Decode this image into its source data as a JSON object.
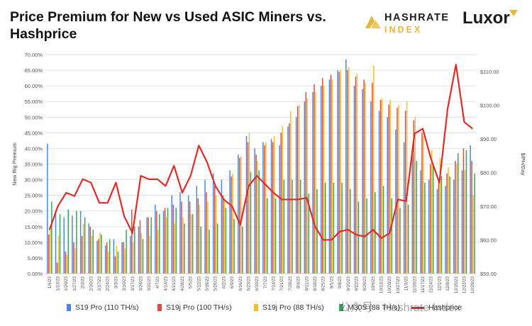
{
  "title": "Price Premium for New vs Used ASIC Miners vs. Hashprice",
  "logos": {
    "hashrate_line1": "HASHRATE",
    "hashrate_line2": "INDEX",
    "luxor": "Luxor"
  },
  "watermark": "公众号 · Hashrate Index",
  "colors": {
    "s19pro": "#4a86e8",
    "s19jpro": "#e24b3c",
    "s19jpro88": "#f4be2a",
    "m30s": "#3aa55a",
    "hashprice": "#e02c28"
  },
  "chart_data": {
    "type": "bar",
    "title": "Price Premium for New vs Used ASIC Miners vs. Hashprice",
    "ylabel": "New Rig Premium",
    "y2label": "$/PH/Day",
    "ylim": [
      0,
      70
    ],
    "y2lim": [
      50,
      115
    ],
    "yticks": [
      "0.00%",
      "5.00%",
      "10.00%",
      "15.00%",
      "20.00%",
      "25.00%",
      "30.00%",
      "35.00%",
      "40.00%",
      "45.00%",
      "50.00%",
      "55.00%",
      "60.00%",
      "65.00%",
      "70.00%"
    ],
    "y2ticks": [
      "$50.00",
      "$60.00",
      "$70.00",
      "$80.00",
      "$90.00",
      "$100.00",
      "$110.00"
    ],
    "grid": true,
    "legend": "bottom",
    "x_labels": [
      "1/6/23",
      "1/13/23",
      "1/20/23",
      "1/27/23",
      "2/3/23",
      "2/10/23",
      "2/17/23",
      "2/24/23",
      "3/3/23",
      "3/10/23",
      "3/17/23",
      "3/24/23",
      "3/31/23",
      "4/7/23",
      "4/14/23",
      "4/21/23",
      "4/28/23",
      "5/5/23",
      "5/12/23",
      "5/19/23",
      "5/26/23",
      "6/2/23",
      "6/9/23",
      "6/16/23",
      "6/23/23",
      "6/30/23",
      "7/7/23",
      "7/14/23",
      "7/21/23",
      "7/28/23",
      "8/4/23",
      "8/11/23",
      "8/18/23",
      "8/25/23",
      "9/1/23",
      "9/8/23",
      "9/15/23",
      "9/22/23",
      "9/29/23",
      "10/6/23",
      "10/13/23",
      "10/20/23",
      "10/27/23",
      "11/3/23",
      "11/10/23",
      "11/17/23",
      "11/24/23",
      "12/1/23",
      "12/8/23",
      "12/15/23",
      "12/22/23",
      "12/29/23"
    ],
    "series": [
      {
        "name": "S19 Pro (110 TH/s)",
        "values": [
          41.5,
          20.0,
          18.0,
          18.5,
          20.0,
          16.0,
          10.5,
          9.0,
          11.0,
          10.0,
          12.0,
          15.0,
          18.0,
          22.0,
          20.0,
          25.0,
          26.0,
          25.0,
          28.0,
          30.0,
          32.0,
          30.0,
          33.0,
          38.0,
          44.0,
          40.0,
          42.0,
          43.0,
          41.0,
          47.0,
          50.0,
          55.0,
          58.0,
          60.0,
          62.0,
          65.0,
          68.5,
          60.0,
          59.0,
          55.0,
          52.0,
          50.0,
          46.0,
          42.0,
          38.0,
          33.0,
          30.0,
          27.0,
          28.0,
          30.0,
          33.0,
          41.0
        ]
      },
      {
        "name": "S19j Pro (100 TH/s)",
        "values": [
          12.5,
          3.5,
          7.0,
          10.0,
          12.0,
          15.0,
          11.0,
          10.0,
          5.5,
          10.0,
          20.5,
          17.0,
          18.0,
          20.0,
          21.0,
          22.0,
          23.0,
          23.0,
          24.0,
          26.0,
          28.0,
          25.0,
          31.0,
          37.0,
          42.0,
          38.0,
          41.0,
          42.0,
          45.0,
          48.0,
          53.5,
          58.0,
          60.5,
          62.5,
          63.5,
          64.5,
          65.0,
          63.0,
          62.0,
          61.0,
          55.5,
          54.0,
          53.0,
          52.0,
          49.0,
          45.0,
          35.0,
          30.0,
          32.0,
          36.0,
          40.0,
          36.0
        ]
      },
      {
        "name": "S19j Pro (88 TH/s)",
        "values": [
          15.0,
          12.0,
          6.0,
          8.0,
          16.0,
          12.0,
          13.0,
          7.0,
          9.0,
          8.0,
          10.0,
          13.0,
          12.0,
          14.0,
          18.0,
          16.0,
          18.0,
          19.0,
          22.0,
          23.0,
          25.0,
          24.0,
          32.0,
          37.5,
          45.0,
          36.0,
          42.0,
          44.0,
          47.0,
          52.0,
          54.0,
          56.0,
          58.0,
          60.0,
          62.0,
          65.0,
          66.0,
          64.0,
          61.0,
          66.5,
          56.0,
          55.5,
          54.0,
          55.0,
          50.0,
          44.0,
          39.5,
          37.0,
          34.0,
          35.0,
          33.0,
          25.0
        ]
      },
      {
        "name": "M30S (88 TH/s)",
        "values": [
          23.0,
          19.0,
          20.5,
          20.0,
          18.0,
          14.0,
          12.5,
          11.0,
          7.0,
          14.0,
          15.0,
          11.0,
          18.0,
          19.0,
          21.0,
          21.0,
          16.0,
          19.0,
          15.0,
          14.0,
          16.0,
          21.0,
          17.5,
          15.0,
          32.5,
          33.0,
          24.0,
          24.0,
          30.0,
          30.0,
          30.0,
          25.5,
          27.0,
          29.0,
          29.0,
          29.0,
          27.0,
          23.0,
          24.0,
          26.0,
          28.0,
          24.0,
          21.0,
          22.0,
          36.0,
          29.0,
          35.0,
          31.0,
          31.0,
          38.5,
          39.5,
          32.0
        ]
      },
      {
        "name": "Hashprice",
        "type": "line",
        "axis": "right",
        "values": [
          63.0,
          70.0,
          74.0,
          73.0,
          78.0,
          77.0,
          71.0,
          71.0,
          77.0,
          67.0,
          62.0,
          79.0,
          78.0,
          78.0,
          76.0,
          82.0,
          74.0,
          79.0,
          88.0,
          83.0,
          76.0,
          72.0,
          70.0,
          64.5,
          76.0,
          79.0,
          76.5,
          74.0,
          72.0,
          72.0,
          72.0,
          72.5,
          64.0,
          60.0,
          60.0,
          62.5,
          63.0,
          61.5,
          61.0,
          63.0,
          60.5,
          62.0,
          72.0,
          71.5,
          91.5,
          93.0,
          84.0,
          77.0,
          99.0,
          112.0,
          95.0,
          93.0
        ]
      }
    ]
  }
}
